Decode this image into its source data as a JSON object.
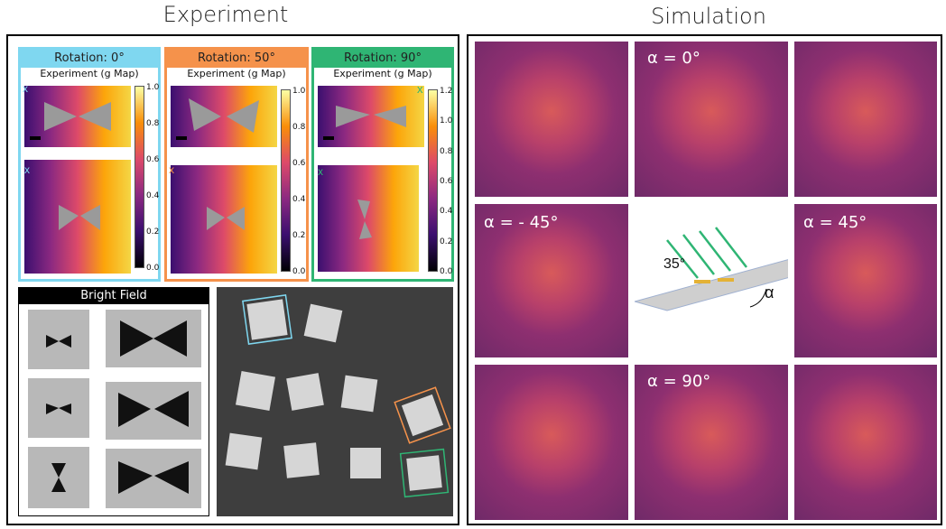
{
  "titles": {
    "experiment": "Experiment",
    "simulation": "Simulation"
  },
  "rotations": [
    {
      "label": "Rotation: 0°",
      "color": "#7fd7f0",
      "gmap": "Experiment (g Map)",
      "marker": "x",
      "ticks": [
        "1.0",
        "0.8",
        "0.6",
        "0.4",
        "0.2",
        "0.0"
      ]
    },
    {
      "label": "Rotation: 50°",
      "color": "#f5924b",
      "gmap": "Experiment (g Map)",
      "marker": "x",
      "ticks": [
        "1.0",
        "0.8",
        "0.6",
        "0.4",
        "0.2",
        "0.0"
      ]
    },
    {
      "label": "Rotation: 90°",
      "color": "#2fb574",
      "gmap": "Experiment (g Map)",
      "marker": "x",
      "ticks": [
        "1.2",
        "1.0",
        "0.8",
        "0.6",
        "0.4",
        "0.2",
        "0.0"
      ]
    }
  ],
  "brightfield": {
    "label": "Bright Field"
  },
  "simulation": {
    "labels": {
      "a0": "α = 0°",
      "am45": "α = - 45°",
      "a45": "α = 45°",
      "a90": "α = 90°"
    },
    "angle": "35°",
    "alpha": "α"
  }
}
